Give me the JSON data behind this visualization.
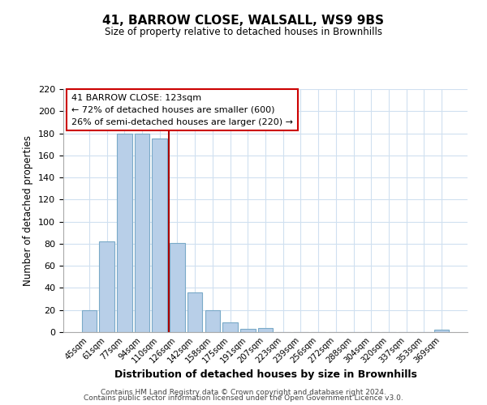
{
  "title": "41, BARROW CLOSE, WALSALL, WS9 9BS",
  "subtitle": "Size of property relative to detached houses in Brownhills",
  "xlabel": "Distribution of detached houses by size in Brownhills",
  "ylabel": "Number of detached properties",
  "bar_labels": [
    "45sqm",
    "61sqm",
    "77sqm",
    "94sqm",
    "110sqm",
    "126sqm",
    "142sqm",
    "158sqm",
    "175sqm",
    "191sqm",
    "207sqm",
    "223sqm",
    "239sqm",
    "256sqm",
    "272sqm",
    "288sqm",
    "304sqm",
    "320sqm",
    "337sqm",
    "353sqm",
    "369sqm"
  ],
  "bar_heights": [
    20,
    82,
    180,
    180,
    175,
    81,
    36,
    20,
    9,
    3,
    4,
    0,
    0,
    0,
    0,
    0,
    0,
    0,
    0,
    0,
    2
  ],
  "bar_color": "#b8cfe8",
  "bar_edge_color": "#7aaac8",
  "vline_color": "#aa0000",
  "ylim": [
    0,
    220
  ],
  "yticks": [
    0,
    20,
    40,
    60,
    80,
    100,
    120,
    140,
    160,
    180,
    200,
    220
  ],
  "annotation_title": "41 BARROW CLOSE: 123sqm",
  "annotation_line1": "← 72% of detached houses are smaller (600)",
  "annotation_line2": "26% of semi-detached houses are larger (220) →",
  "annotation_box_color": "#ffffff",
  "annotation_box_edge": "#cc0000",
  "grid_color": "#d0e0f0",
  "footer1": "Contains HM Land Registry data © Crown copyright and database right 2024.",
  "footer2": "Contains public sector information licensed under the Open Government Licence v3.0."
}
